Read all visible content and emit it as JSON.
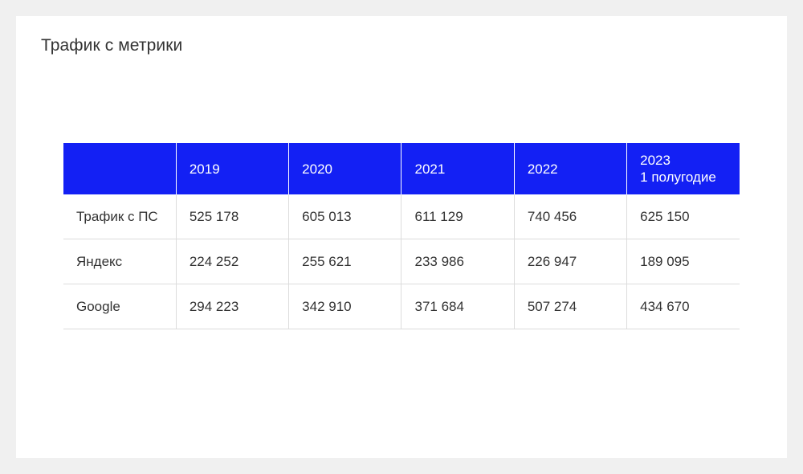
{
  "page": {
    "title": "Трафик с метрики"
  },
  "table": {
    "header": {
      "corner": "",
      "columns": [
        {
          "line1": "2019",
          "line2": ""
        },
        {
          "line1": "2020",
          "line2": ""
        },
        {
          "line1": "2021",
          "line2": ""
        },
        {
          "line1": "2022",
          "line2": ""
        },
        {
          "line1": "2023",
          "line2": "1 полугодие"
        }
      ]
    },
    "rows": [
      {
        "label": "Трафик с ПС",
        "values": [
          "525 178",
          "605 013",
          "611 129",
          "740 456",
          "625 150"
        ]
      },
      {
        "label": "Яндекс",
        "values": [
          "224 252",
          "255 621",
          "233 986",
          "226 947",
          "189 095"
        ]
      },
      {
        "label": "Google",
        "values": [
          "294 223",
          "342 910",
          "371 684",
          "507 274",
          "434 670"
        ]
      }
    ]
  },
  "colors": {
    "header_background": "#1320f4",
    "header_text": "#ffffff",
    "body_text": "#333333",
    "grid_lines": "#dcdcdc",
    "page_background": "#f0f0f0",
    "card_background": "#ffffff"
  }
}
